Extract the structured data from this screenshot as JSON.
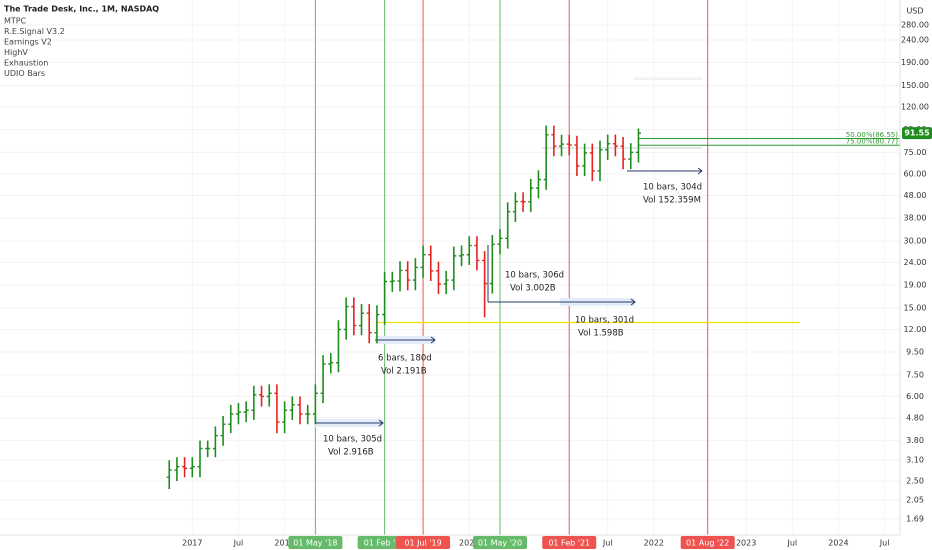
{
  "chart_data": {
    "type": "ohlc",
    "title": "The Trade Desk, Inc., 1M, NASDAQ",
    "indicators": [
      "MTPC",
      "R.E.Signal V3.2",
      "Earnings V2",
      "HighV",
      "Exhaustion",
      "UDIO Bars"
    ],
    "currency": "USD",
    "log_scale": true,
    "up_color": "#1e8c1e",
    "down_color": "#e52222",
    "x": [
      "2016-10",
      "2016-11",
      "2016-12",
      "2017-01",
      "2017-02",
      "2017-03",
      "2017-04",
      "2017-05",
      "2017-06",
      "2017-07",
      "2017-08",
      "2017-09",
      "2017-10",
      "2017-11",
      "2017-12",
      "2018-01",
      "2018-02",
      "2018-03",
      "2018-04",
      "2018-05",
      "2018-06",
      "2018-07",
      "2018-08",
      "2018-09",
      "2018-10",
      "2018-11",
      "2018-12",
      "2019-01",
      "2019-02",
      "2019-03",
      "2019-04",
      "2019-05",
      "2019-06",
      "2019-07",
      "2019-08",
      "2019-09",
      "2019-10",
      "2019-11",
      "2019-12",
      "2020-01",
      "2020-02",
      "2020-03",
      "2020-04",
      "2020-05",
      "2020-06",
      "2020-07",
      "2020-08",
      "2020-09",
      "2020-10",
      "2020-11",
      "2020-12",
      "2021-01",
      "2021-02",
      "2021-03",
      "2021-04",
      "2021-05",
      "2021-06",
      "2021-07",
      "2021-08",
      "2021-09",
      "2021-10",
      "2021-11"
    ],
    "open": [
      2.6,
      2.8,
      2.9,
      2.85,
      2.9,
      3.5,
      3.5,
      4.0,
      4.5,
      5.0,
      5.1,
      5.2,
      6.1,
      6.0,
      6.2,
      4.6,
      5.2,
      5.5,
      5.0,
      5.0,
      6.2,
      8.4,
      8.5,
      12.0,
      15.2,
      12.5,
      14.2,
      11.6,
      14.0,
      19.7,
      19.8,
      22.1,
      20.0,
      22.8,
      26.0,
      22.0,
      19.2,
      20.0,
      25.7,
      26.0,
      28.6,
      24.5,
      19.3,
      29.0,
      30.8,
      40.6,
      45.1,
      45.0,
      51.8,
      56.6,
      90.0,
      80.0,
      81.7,
      80.9,
      65.2,
      74.6,
      61.9,
      77.0,
      82.0,
      80.0,
      70.0,
      75.0
    ],
    "high": [
      3.1,
      3.2,
      3.2,
      3.2,
      3.8,
      3.8,
      4.4,
      4.9,
      5.5,
      5.6,
      5.7,
      6.7,
      6.7,
      6.8,
      6.8,
      5.7,
      6.0,
      6.0,
      5.5,
      6.8,
      9.2,
      9.4,
      13.2,
      16.7,
      16.7,
      15.6,
      15.6,
      15.4,
      21.7,
      21.8,
      24.3,
      24.3,
      25.1,
      28.6,
      28.6,
      24.2,
      22.0,
      28.3,
      28.6,
      31.5,
      31.5,
      27.0,
      31.9,
      33.9,
      44.7,
      49.6,
      49.6,
      57.0,
      62.3,
      99.0,
      99.0,
      89.9,
      89.9,
      89.0,
      82.1,
      82.1,
      84.7,
      90.2,
      90.2,
      88.0,
      82.5,
      96.0
    ],
    "low": [
      2.3,
      2.5,
      2.6,
      2.6,
      2.6,
      3.2,
      3.2,
      3.6,
      4.1,
      4.5,
      4.6,
      4.7,
      5.4,
      5.4,
      4.1,
      4.1,
      4.7,
      4.5,
      4.5,
      4.5,
      5.6,
      7.6,
      7.7,
      10.8,
      11.3,
      11.3,
      10.4,
      10.4,
      12.6,
      17.7,
      17.8,
      18.0,
      18.0,
      20.5,
      19.8,
      17.3,
      17.3,
      18.0,
      23.1,
      23.4,
      22.1,
      13.6,
      17.4,
      26.1,
      27.7,
      36.5,
      40.5,
      40.5,
      46.6,
      50.9,
      72.0,
      72.0,
      72.8,
      58.7,
      58.7,
      55.7,
      55.7,
      69.3,
      72.0,
      63.0,
      63.0,
      67.5
    ],
    "close": [
      2.8,
      2.9,
      2.85,
      2.9,
      3.5,
      3.5,
      4.0,
      4.5,
      5.0,
      5.1,
      5.2,
      6.1,
      6.0,
      6.2,
      4.6,
      5.2,
      5.5,
      5.0,
      5.0,
      6.2,
      8.4,
      8.5,
      12.0,
      15.2,
      12.5,
      14.2,
      11.6,
      14.0,
      19.7,
      19.8,
      22.1,
      20.0,
      22.8,
      26.0,
      22.0,
      19.2,
      20.0,
      25.7,
      26.0,
      28.6,
      24.5,
      19.3,
      29.0,
      30.8,
      40.6,
      45.1,
      45.0,
      51.8,
      56.6,
      90.0,
      80.0,
      81.7,
      80.9,
      65.2,
      74.6,
      61.9,
      77.0,
      82.0,
      80.0,
      70.0,
      75.0,
      91.55
    ],
    "last_price": 91.55,
    "last_price_color": "#1e8c1e",
    "xlim": [
      "2014-12",
      "2024-09"
    ],
    "xticks": [
      {
        "value": "2017-01",
        "label": "2017"
      },
      {
        "value": "2017-07",
        "label": "Jul"
      },
      {
        "value": "2018-01",
        "label": "2018"
      },
      {
        "value": "2018-05",
        "label": "01 May '18",
        "color": "#66bb6a"
      },
      {
        "value": "2019-02",
        "label": "01 Feb '19",
        "color": "#66bb6a"
      },
      {
        "value": "2019-07",
        "label": "01 Jul '19",
        "color": "#ef5350"
      },
      {
        "value": "2020-01",
        "label": "2020"
      },
      {
        "value": "2020-05",
        "label": "01 May '20",
        "color": "#66bb6a"
      },
      {
        "value": "2021-02",
        "label": "01 Feb '21",
        "color": "#ef5350"
      },
      {
        "value": "2021-07",
        "label": "Jul"
      },
      {
        "value": "2022-01",
        "label": "2022"
      },
      {
        "value": "2022-08",
        "label": "01 Aug '22",
        "color": "#ef5350"
      },
      {
        "value": "2023-01",
        "label": "2023"
      },
      {
        "value": "2023-07",
        "label": "Jul"
      },
      {
        "value": "2024-01",
        "label": "2024"
      },
      {
        "value": "2024-07",
        "label": "Jul"
      }
    ],
    "ylim": [
      1.43,
      363
    ],
    "yticks": [
      {
        "value": 1.69,
        "label": "1.69"
      },
      {
        "value": 2.05,
        "label": "2.05"
      },
      {
        "value": 2.5,
        "label": "2.50"
      },
      {
        "value": 3.1,
        "label": "3.10"
      },
      {
        "value": 3.8,
        "label": "3.80"
      },
      {
        "value": 4.8,
        "label": "4.80"
      },
      {
        "value": 6,
        "label": "6.00"
      },
      {
        "value": 7.5,
        "label": "7.50"
      },
      {
        "value": 9.5,
        "label": "9.50"
      },
      {
        "value": 12,
        "label": "12.00"
      },
      {
        "value": 15,
        "label": "15.00"
      },
      {
        "value": 19,
        "label": "19.00"
      },
      {
        "value": 24,
        "label": "24.00"
      },
      {
        "value": 30,
        "label": "30.00"
      },
      {
        "value": 38,
        "label": "38.00"
      },
      {
        "value": 48,
        "label": "48.00"
      },
      {
        "value": 60,
        "label": "60.00"
      },
      {
        "value": 75,
        "label": "75.00"
      },
      {
        "value": 95,
        "label": "95.00"
      },
      {
        "value": 120,
        "label": "120.00"
      },
      {
        "value": 150,
        "label": "150.00"
      },
      {
        "value": 190,
        "label": "190.00"
      },
      {
        "value": 240,
        "label": "240.00"
      },
      {
        "value": 280,
        "label": "280.00"
      }
    ],
    "levels": [
      {
        "value": 86.55,
        "label": "50.00%(86.55)",
        "color": "#2e9a2e"
      },
      {
        "value": 80.77,
        "label": "75.00%(80.77)",
        "color": "#2e9a2e"
      }
    ],
    "horizontal_line": {
      "value": 12.9,
      "from": "2019-01",
      "to": "2023-08",
      "color": "#f2e200"
    },
    "measures": [
      [
        "10 bars, 305d",
        "Vol 2.916B"
      ],
      [
        "6 bars, 180d",
        "Vol 2.191B"
      ],
      [
        "10 bars, 306d",
        "Vol 3.002B"
      ],
      [
        "10 bars, 301d",
        "Vol 1.598B"
      ],
      [
        "10 bars, 304d",
        "Vol 152.359M"
      ]
    ]
  }
}
